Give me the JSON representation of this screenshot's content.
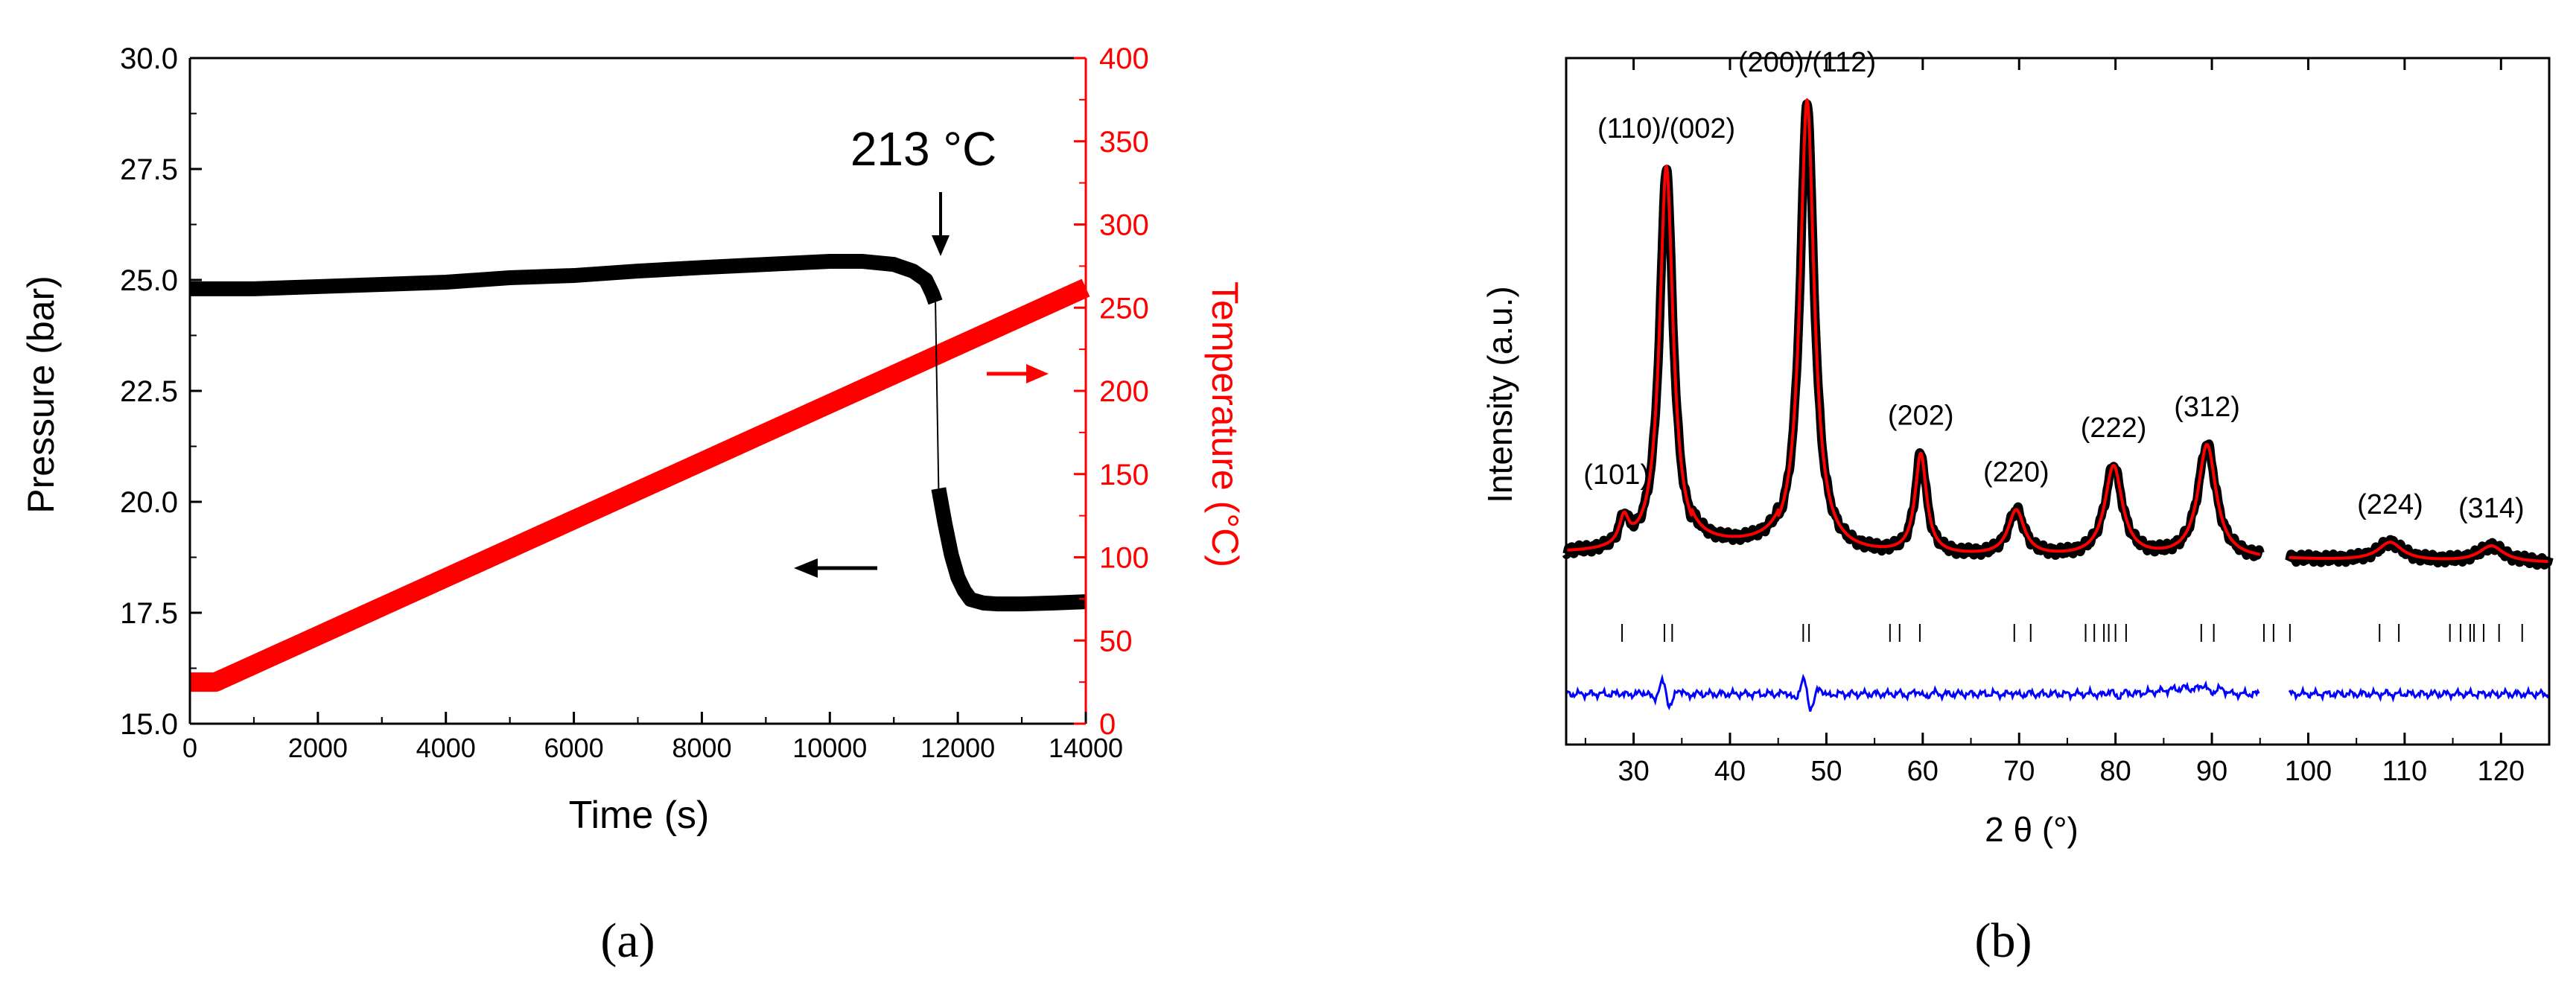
{
  "chart_data": [
    {
      "id": "a",
      "type": "line",
      "panel_label": "(a)",
      "xlabel": "Time (s)",
      "ylabel": "Pressure (bar)",
      "y2label": "Temperature (°C)",
      "xlim": [
        0,
        14000
      ],
      "ylim": [
        15.0,
        30.0
      ],
      "y2lim": [
        0,
        400
      ],
      "x_ticks": [
        "0",
        "2000",
        "4000",
        "6000",
        "8000",
        "10000",
        "12000",
        "14000"
      ],
      "y_ticks": [
        "15.0",
        "17.5",
        "20.0",
        "22.5",
        "25.0",
        "27.5",
        "30.0"
      ],
      "y2_ticks": [
        "0",
        "50",
        "100",
        "150",
        "200",
        "250",
        "300",
        "350",
        "400"
      ],
      "annotation": "213 °C",
      "colors": {
        "pressure": "#000000",
        "temperature": "#ff0000"
      },
      "series": [
        {
          "name": "Pressure",
          "axis": "left",
          "x": [
            0,
            1000,
            2000,
            3000,
            4000,
            5000,
            6000,
            7000,
            8000,
            9000,
            10000,
            10500,
            11000,
            11300,
            11500,
            11600,
            11650,
            11700,
            11800,
            11900,
            12000,
            12100,
            12200,
            12400,
            12600,
            13000,
            13500,
            14000
          ],
          "y": [
            24.8,
            24.8,
            24.85,
            24.9,
            24.95,
            25.05,
            25.1,
            25.2,
            25.28,
            25.35,
            25.42,
            25.42,
            25.35,
            25.2,
            25.0,
            24.7,
            24.5,
            20.3,
            19.5,
            18.8,
            18.3,
            18.0,
            17.8,
            17.72,
            17.7,
            17.7,
            17.72,
            17.75
          ]
        },
        {
          "name": "Temperature",
          "axis": "right",
          "x": [
            0,
            400,
            14000
          ],
          "y": [
            25,
            25,
            262
          ]
        }
      ]
    },
    {
      "id": "b",
      "type": "line",
      "panel_label": "(b)",
      "xlabel": "2 θ (°)",
      "ylabel": "Intensity (a.u.)",
      "xlim": [
        23,
        125
      ],
      "x_ticks": [
        "30",
        "40",
        "50",
        "60",
        "70",
        "80",
        "90",
        "100",
        "110",
        "120"
      ],
      "colors": {
        "observed": "#000000",
        "calculated": "#ff0000",
        "difference": "#0000ff",
        "reflections": "#000000"
      },
      "peaks": [
        {
          "label": "(101)",
          "pos": 29.0,
          "height": 0.06
        },
        {
          "label": "(110)/(002)",
          "pos": 33.4,
          "height": 0.85
        },
        {
          "label": "(200)/(112)",
          "pos": 48.0,
          "height": 1.0
        },
        {
          "label": "(202)",
          "pos": 59.8,
          "height": 0.22
        },
        {
          "label": "(220)",
          "pos": 69.7,
          "height": 0.1
        },
        {
          "label": "(222)",
          "pos": 79.8,
          "height": 0.2
        },
        {
          "label": "(312)",
          "pos": 89.5,
          "height": 0.25
        },
        {
          "label": "(224)",
          "pos": 108.5,
          "height": 0.04
        },
        {
          "label": "(314)",
          "pos": 119.0,
          "height": 0.035
        }
      ],
      "reflections": [
        28.8,
        33.2,
        34.0,
        47.6,
        48.2,
        56.6,
        57.6,
        59.7,
        69.5,
        71.2,
        76.9,
        77.8,
        78.8,
        79.3,
        80.0,
        81.1,
        88.9,
        90.2,
        95.4,
        96.4,
        98.1,
        107.4,
        109.4,
        114.7,
        115.8,
        116.8,
        117.2,
        118.2,
        119.8,
        122.2
      ],
      "gap": [
        95,
        98
      ]
    }
  ]
}
